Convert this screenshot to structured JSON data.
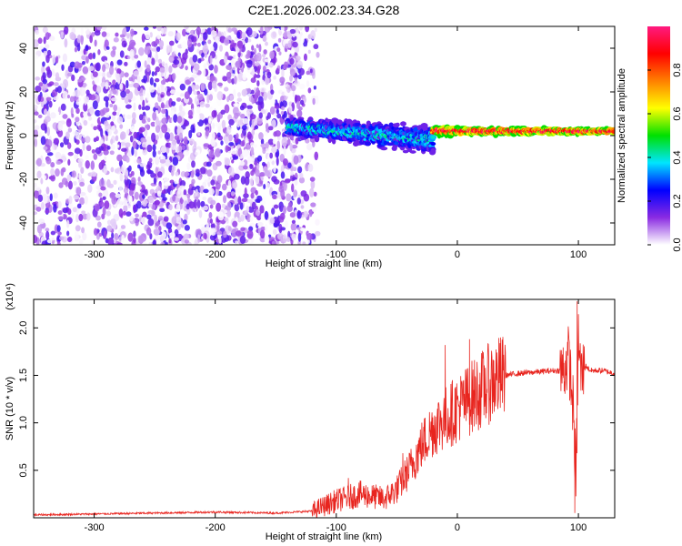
{
  "title": "C2E1.2026.002.23.34.G28",
  "chart_data": [
    {
      "type": "heatmap",
      "xlabel": "Height of straight line (km)",
      "ylabel": "Frequency (Hz)",
      "xlim": [
        -350,
        130
      ],
      "ylim": [
        -50,
        50
      ],
      "xticks": [
        -300,
        -200,
        -100,
        0,
        100
      ],
      "yticks": [
        -40,
        -20,
        0,
        20,
        40
      ],
      "colorbar": {
        "label": "Normalized spectral amplitude",
        "range": [
          0,
          1
        ],
        "ticks": [
          0.0,
          0.2,
          0.4,
          0.6,
          0.8
        ],
        "colors": [
          "#ffffff",
          "#8a2be2",
          "#0000ff",
          "#00e5ff",
          "#00e000",
          "#ffff00",
          "#ff8000",
          "#ff0000",
          "#ff1a80"
        ]
      },
      "regions": [
        {
          "x_range": [
            -350,
            -130
          ],
          "freq_range": [
            -50,
            50
          ],
          "amplitude_range": [
            0.0,
            0.2
          ],
          "pattern": "scattered noise"
        },
        {
          "x_range": [
            -140,
            -20
          ],
          "freq_center": [
            4,
            -2
          ],
          "freq_halfwidth": [
            4,
            7
          ],
          "amplitude_range": [
            0.15,
            0.45
          ]
        },
        {
          "x_range": [
            -20,
            130
          ],
          "freq_center": [
            2,
            2
          ],
          "freq_halfwidth": [
            2,
            1
          ],
          "amplitude_range": [
            0.5,
            1.0
          ]
        }
      ],
      "colorbar_tick_format": "fixed1"
    },
    {
      "type": "line",
      "xlabel": "Height of straight line (km)",
      "ylabel": "SNR (10 * v/v)",
      "y_multiplier": "(x10⁴)",
      "xlim": [
        -350,
        130
      ],
      "ylim": [
        0,
        2.3
      ],
      "xticks": [
        -300,
        -200,
        -100,
        0,
        100
      ],
      "yticks": [
        0.5,
        1.0,
        1.5,
        2.0
      ],
      "color": "#e8251f",
      "x": [
        -350,
        -300,
        -250,
        -200,
        -150,
        -120,
        -100,
        -80,
        -60,
        -50,
        -40,
        -30,
        -20,
        -10,
        0,
        10,
        20,
        30,
        40,
        50,
        60,
        70,
        80,
        88,
        92,
        96,
        98,
        100,
        102,
        106,
        110,
        120,
        130
      ],
      "values": [
        0.03,
        0.04,
        0.05,
        0.06,
        0.05,
        0.07,
        0.18,
        0.25,
        0.2,
        0.3,
        0.5,
        0.75,
        0.95,
        1.05,
        1.15,
        1.25,
        1.35,
        1.45,
        1.5,
        1.52,
        1.53,
        1.54,
        1.55,
        1.55,
        1.7,
        1.1,
        0.35,
        1.9,
        1.5,
        1.6,
        1.55,
        1.55,
        1.52
      ],
      "spikes": [
        {
          "x": -90,
          "y": 0.42
        },
        {
          "x": -45,
          "y": 0.68
        },
        {
          "x": -10,
          "y": 1.82
        },
        {
          "x": 10,
          "y": 1.88
        },
        {
          "x": 97,
          "y": 0.05
        },
        {
          "x": 99,
          "y": 2.28
        }
      ]
    }
  ]
}
